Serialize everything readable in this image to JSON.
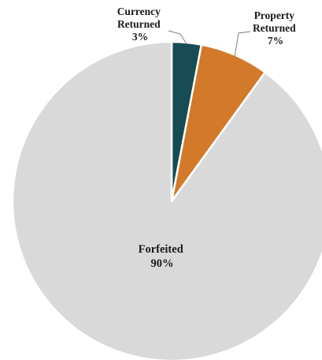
{
  "chart_data": {
    "type": "pie",
    "title": "",
    "unit": "%",
    "slices": [
      {
        "label": [
          "Currency",
          "Returned"
        ],
        "value": 3,
        "value_label": "3%",
        "color": "#174c54"
      },
      {
        "label": [
          "Property",
          "Returned"
        ],
        "value": 7,
        "value_label": "7%",
        "color": "#d27a2a"
      },
      {
        "label": [
          "Forfeited"
        ],
        "value": 90,
        "value_label": "90%",
        "color": "#d9d9d9"
      }
    ],
    "start_angle_deg": 0,
    "direction": "clockwise",
    "slice_border_color": "#ffffff",
    "legend": "none"
  }
}
